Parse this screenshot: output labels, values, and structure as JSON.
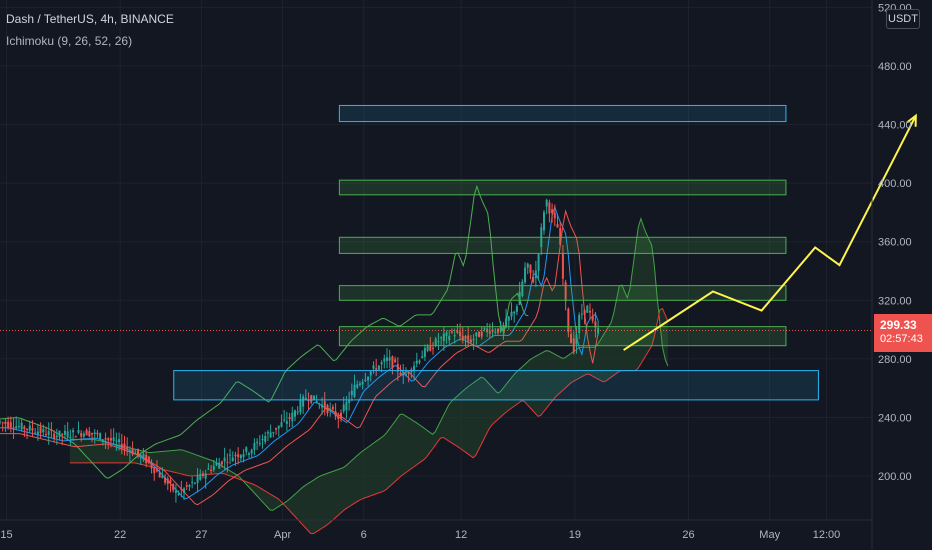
{
  "header": {
    "title": "Dash / TetherUS, 4h, BINANCE",
    "indicator": "Ichimoku (9, 26, 52, 26)"
  },
  "axis": {
    "currency": "USDT",
    "last_price": "299.33",
    "countdown": "02:57:43"
  },
  "colors": {
    "background": "#131722",
    "grid": "#1e222d",
    "up": "#26a69a",
    "down": "#ef5350",
    "cloud_fill": "#1f3b2a",
    "zone_green": "#4caf50",
    "zone_blue": "#29b6f6",
    "projection": "#fff34d"
  },
  "chart_data": {
    "type": "candlestick",
    "symbol": "Dash / TetherUS",
    "interval": "4h",
    "exchange": "BINANCE",
    "y_ticks": [
      200,
      240,
      280,
      320,
      360,
      400,
      440,
      480,
      520
    ],
    "y_tick_labels": [
      "200.00",
      "240.00",
      "280.00",
      "320.00",
      "360.00",
      "400.00",
      "440.00",
      "480.00",
      "520.00"
    ],
    "ylim": [
      170,
      525
    ],
    "x_ticks": [
      {
        "label": "15",
        "day": 15
      },
      {
        "label": "22",
        "day": 22
      },
      {
        "label": "27",
        "day": 27
      },
      {
        "label": "Apr",
        "day": 32
      },
      {
        "label": "6",
        "day": 37
      },
      {
        "label": "12",
        "day": 43
      },
      {
        "label": "19",
        "day": 50
      },
      {
        "label": "26",
        "day": 57
      },
      {
        "label": "May",
        "day": 62
      },
      {
        "label": "12:00",
        "day": 65.5
      }
    ],
    "xlim": [
      14.6,
      68.3
    ],
    "last_price": 299.33,
    "price_path": [
      [
        14.6,
        237
      ],
      [
        16.5,
        232
      ],
      [
        18.0,
        228
      ],
      [
        20.0,
        230
      ],
      [
        22.0,
        222
      ],
      [
        23.5,
        212
      ],
      [
        24.5,
        200
      ],
      [
        25.5,
        188
      ],
      [
        26.5,
        195
      ],
      [
        27.5,
        205
      ],
      [
        28.5,
        212
      ],
      [
        30.0,
        218
      ],
      [
        31.0,
        228
      ],
      [
        32.5,
        240
      ],
      [
        33.5,
        255
      ],
      [
        34.5,
        248
      ],
      [
        35.5,
        240
      ],
      [
        36.5,
        262
      ],
      [
        37.5,
        272
      ],
      [
        38.5,
        280
      ],
      [
        39.5,
        268
      ],
      [
        40.5,
        282
      ],
      [
        41.5,
        292
      ],
      [
        42.5,
        298
      ],
      [
        43.5,
        292
      ],
      [
        44.5,
        300
      ],
      [
        45.5,
        300
      ],
      [
        46.5,
        318
      ],
      [
        47.0,
        345
      ],
      [
        47.5,
        332
      ],
      [
        48.2,
        390
      ],
      [
        48.5,
        380
      ],
      [
        49.0,
        368
      ],
      [
        49.3,
        330
      ],
      [
        49.6,
        300
      ],
      [
        49.9,
        285
      ],
      [
        50.3,
        310
      ],
      [
        50.8,
        315
      ],
      [
        51.2,
        300
      ],
      [
        51.5,
        299.33
      ]
    ],
    "zones": [
      {
        "kind": "resistance",
        "color": "blue",
        "x0": 35.5,
        "x1": 63.0,
        "y0": 442,
        "y1": 453
      },
      {
        "kind": "resistance",
        "color": "green",
        "x0": 35.5,
        "x1": 63.0,
        "y0": 392,
        "y1": 402
      },
      {
        "kind": "resistance",
        "color": "green",
        "x0": 35.5,
        "x1": 63.0,
        "y0": 352,
        "y1": 363
      },
      {
        "kind": "resistance",
        "color": "green",
        "x0": 35.5,
        "x1": 63.0,
        "y0": 320,
        "y1": 330
      },
      {
        "kind": "support",
        "color": "green",
        "x0": 35.5,
        "x1": 63.0,
        "y0": 289,
        "y1": 302
      },
      {
        "kind": "support",
        "color": "blue",
        "x0": 25.3,
        "x1": 65.0,
        "y0": 252,
        "y1": 272
      }
    ],
    "projection": [
      [
        53.0,
        286
      ],
      [
        58.5,
        326
      ],
      [
        61.5,
        313
      ],
      [
        64.8,
        356
      ],
      [
        66.3,
        344
      ],
      [
        71.0,
        446
      ]
    ]
  }
}
